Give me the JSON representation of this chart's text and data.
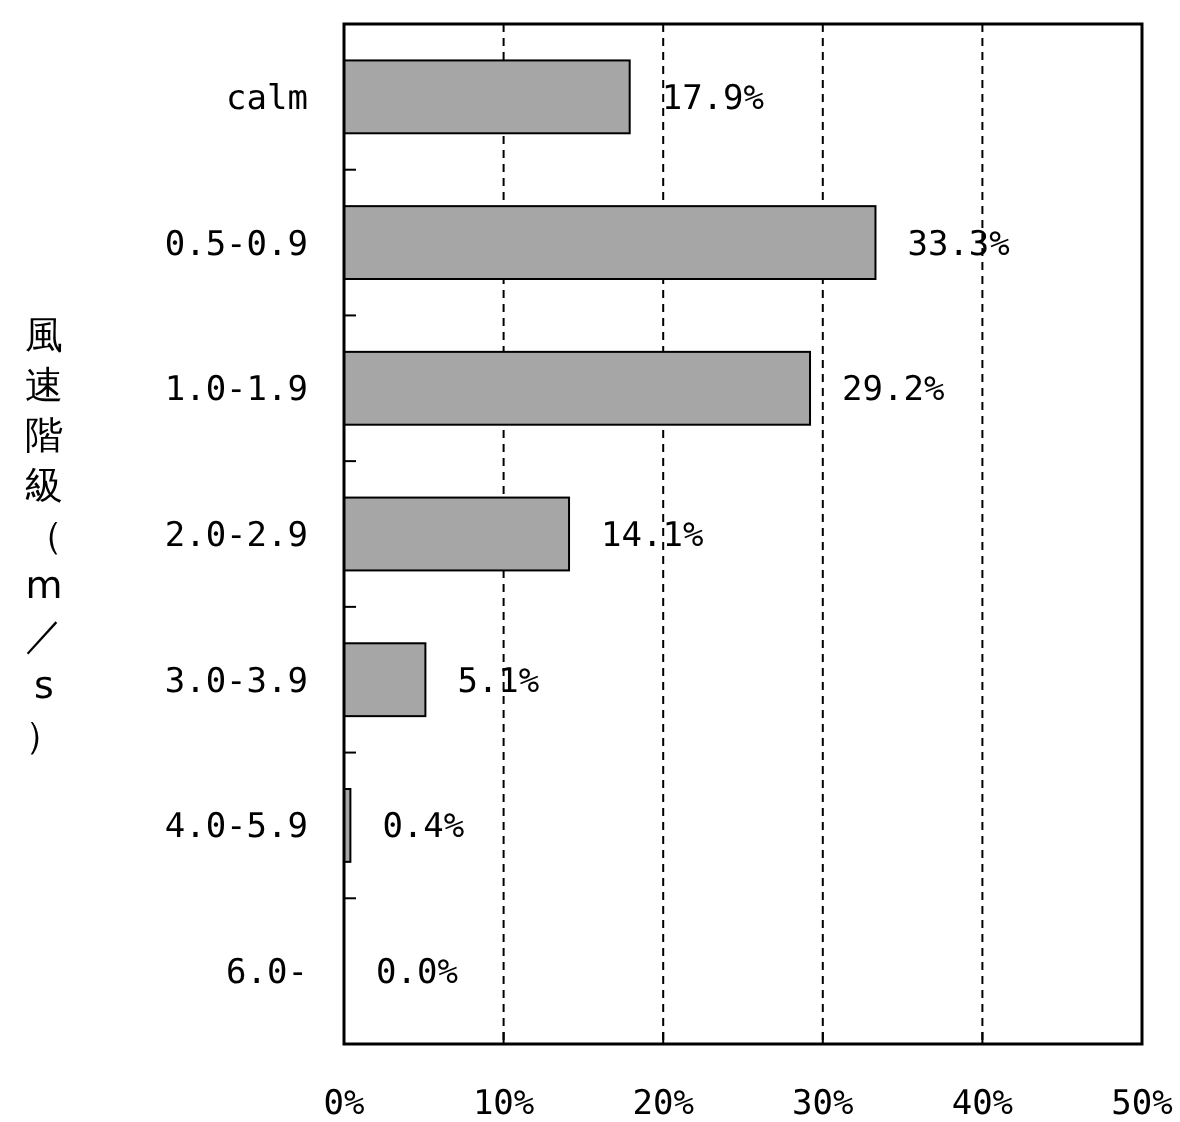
{
  "chart_data": {
    "type": "bar",
    "orientation": "horizontal",
    "ylabel": "風速階級（m／s）",
    "categories": [
      "calm",
      "0.5-0.9",
      "1.0-1.9",
      "2.0-2.9",
      "3.0-3.9",
      "4.0-5.9",
      "6.0-"
    ],
    "values": [
      17.9,
      33.3,
      29.2,
      14.1,
      5.1,
      0.4,
      0.0
    ],
    "value_labels": [
      "17.9%",
      "33.3%",
      "29.2%",
      "14.1%",
      "5.1%",
      "0.4%",
      "0.0%"
    ],
    "color": "#a6a6a6",
    "xlim": [
      0,
      50
    ],
    "xticks": [
      {
        "value": 0,
        "label": "0%"
      },
      {
        "value": 10,
        "label": "10%"
      },
      {
        "value": 20,
        "label": "20%"
      },
      {
        "value": 30,
        "label": "30%"
      },
      {
        "value": 40,
        "label": "40%"
      },
      {
        "value": 50,
        "label": "50%"
      }
    ],
    "grid": "x"
  }
}
